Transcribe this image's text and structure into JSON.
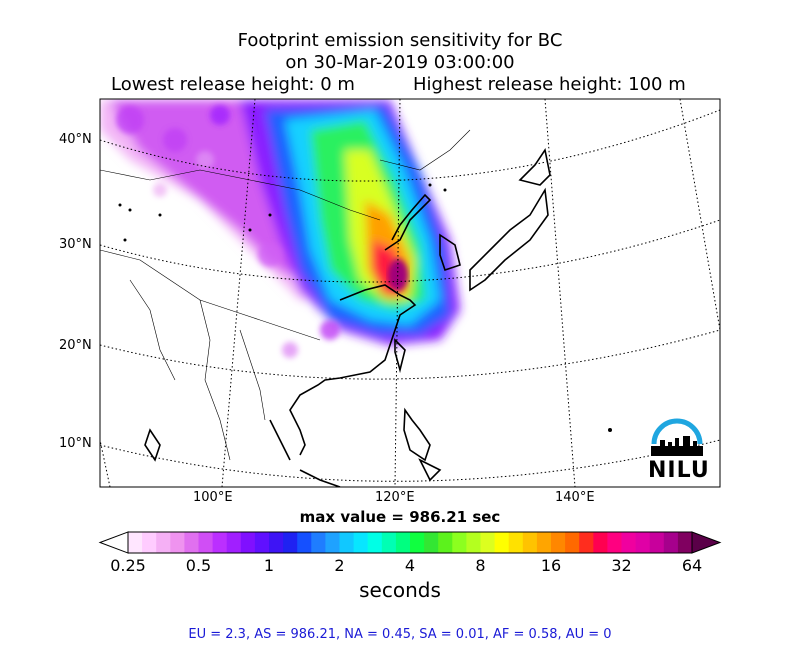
{
  "title": {
    "line1": "Footprint emission sensitivity for BC",
    "line2": "on 30-Mar-2019 03:00:00",
    "release_low": "Lowest release height: 0 m",
    "release_high": "Highest release height: 100 m"
  },
  "axes": {
    "lat_labels": [
      "40°N",
      "30°N",
      "20°N",
      "10°N"
    ],
    "lon_labels": [
      "100°E",
      "120°E",
      "140°E"
    ]
  },
  "max_value": "max value = 986.21 sec",
  "colorbar": {
    "tick_labels": [
      "0.25",
      "0.5",
      "1",
      "2",
      "4",
      "8",
      "16",
      "32",
      "64"
    ],
    "unit": "seconds",
    "colors": [
      "#ffe6ff",
      "#ffccff",
      "#f5b0f5",
      "#ef93ef",
      "#e070ef",
      "#d04ef5",
      "#bb2fff",
      "#a11fff",
      "#8010ff",
      "#6010ff",
      "#3e14f5",
      "#1f22f2",
      "#1550ff",
      "#1f7dff",
      "#1fa2ff",
      "#11c8ff",
      "#08e6ff",
      "#00ffe6",
      "#00ffb4",
      "#00ff80",
      "#10ff40",
      "#33e633",
      "#5cf21c",
      "#8cff1f",
      "#b4ff1f",
      "#dcff1f",
      "#ffff00",
      "#ffe100",
      "#ffc300",
      "#ffa500",
      "#ff8700",
      "#ff6900",
      "#ff2d1e",
      "#ff0050",
      "#ff0080",
      "#f0009f",
      "#e000a6",
      "#c8009c",
      "#a6008c",
      "#800060"
    ]
  },
  "stats": "EU = 2.3,  AS = 986.21,  NA = 0.45,  SA = 0.01,  AF = 0.58,  AU = 0",
  "logo": {
    "text": "NILU",
    "color": "#1fa6e0"
  }
}
